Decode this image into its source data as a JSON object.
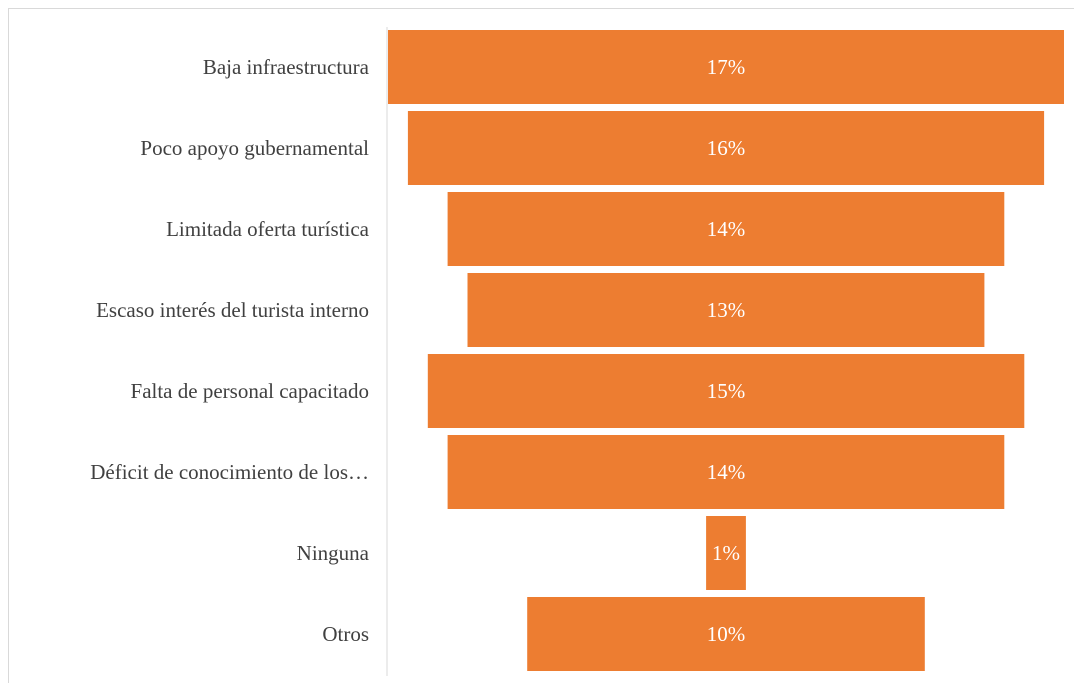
{
  "chart_data": {
    "type": "bar",
    "subtype": "funnel",
    "orientation": "horizontal",
    "title": "",
    "xlabel": "",
    "ylabel": "",
    "categories": [
      "Baja infraestructura",
      "Poco apoyo gubernamental",
      "Limitada oferta turística",
      "Escaso interés del turista interno",
      "Falta de personal capacitado",
      "Déficit de conocimiento de los…",
      "Ninguna",
      "Otros"
    ],
    "values": [
      17,
      16,
      14,
      13,
      15,
      14,
      1,
      10
    ],
    "data_labels": [
      "17%",
      "16%",
      "14%",
      "13%",
      "15%",
      "14%",
      "1%",
      "10%"
    ],
    "value_unit": "%",
    "bar_color": "#ED7D31",
    "label_color": "#ffffff",
    "grid": false,
    "legend": "none"
  }
}
